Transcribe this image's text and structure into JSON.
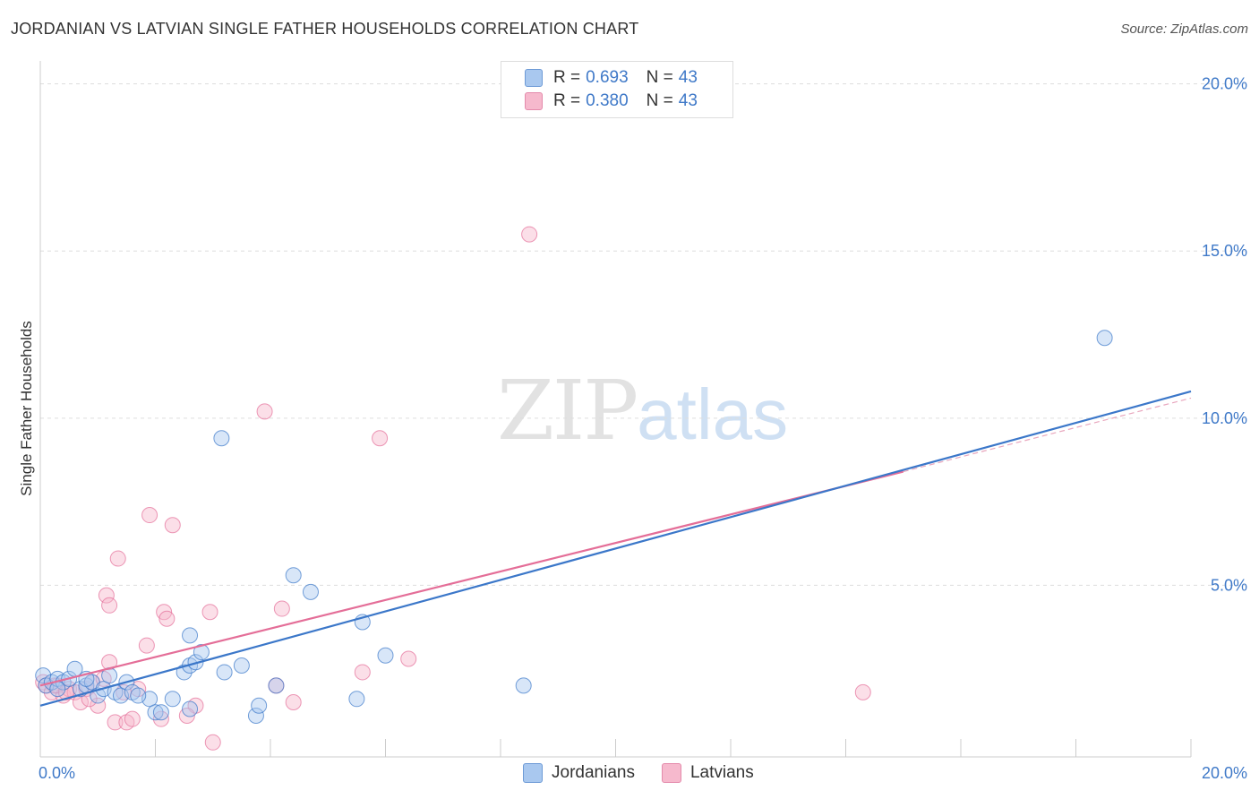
{
  "title": "JORDANIAN VS LATVIAN SINGLE FATHER HOUSEHOLDS CORRELATION CHART",
  "source": "Source: ZipAtlas.com",
  "watermark": {
    "zip": "ZIP",
    "atlas": "atlas"
  },
  "legend": {
    "r_label": "R =",
    "n_label": "N =",
    "series": [
      {
        "name": "Jordanians",
        "r": "0.693",
        "n": "43"
      },
      {
        "name": "Latvians",
        "r": "0.380",
        "n": "43"
      }
    ]
  },
  "chart_data": {
    "type": "scatter",
    "title": "JORDANIAN VS LATVIAN SINGLE FATHER HOUSEHOLDS CORRELATION CHART",
    "xlabel": "",
    "ylabel": "Single Father Households",
    "xlim": [
      0,
      20
    ],
    "ylim": [
      0,
      20.5
    ],
    "x_tick_labels": [
      "0.0%",
      "20.0%"
    ],
    "y_ticks": [
      5,
      10,
      15,
      20
    ],
    "y_tick_labels": [
      "5.0%",
      "10.0%",
      "15.0%",
      "20.0%"
    ],
    "grid": true,
    "colors": {
      "Jordanians": "#3b77c9",
      "Latvians": "#e46e98",
      "Jordanians_fill": "#a9c8ef",
      "Latvians_fill": "#f6b9cd"
    },
    "series": [
      {
        "name": "Jordanians",
        "r": 0.693,
        "n": 43,
        "trend": {
          "x": [
            0,
            20
          ],
          "y": [
            1.4,
            10.8
          ]
        },
        "points": [
          [
            0.05,
            2.3
          ],
          [
            0.1,
            2.0
          ],
          [
            0.2,
            2.1
          ],
          [
            0.3,
            2.2
          ],
          [
            0.4,
            2.1
          ],
          [
            0.5,
            2.2
          ],
          [
            0.6,
            2.5
          ],
          [
            0.7,
            1.9
          ],
          [
            0.8,
            2.0
          ],
          [
            0.9,
            2.1
          ],
          [
            1.0,
            1.7
          ],
          [
            1.1,
            1.9
          ],
          [
            1.3,
            1.8
          ],
          [
            1.4,
            1.7
          ],
          [
            1.5,
            2.1
          ],
          [
            1.6,
            1.8
          ],
          [
            1.2,
            2.3
          ],
          [
            1.9,
            1.6
          ],
          [
            2.0,
            1.2
          ],
          [
            2.1,
            1.2
          ],
          [
            2.3,
            1.6
          ],
          [
            2.5,
            2.4
          ],
          [
            2.6,
            2.6
          ],
          [
            2.6,
            1.3
          ],
          [
            2.7,
            2.7
          ],
          [
            2.6,
            3.5
          ],
          [
            2.8,
            3.0
          ],
          [
            3.2,
            2.4
          ],
          [
            3.5,
            2.6
          ],
          [
            3.75,
            1.1
          ],
          [
            3.8,
            1.4
          ],
          [
            4.1,
            2.0
          ],
          [
            4.4,
            5.3
          ],
          [
            4.7,
            4.8
          ],
          [
            5.5,
            1.6
          ],
          [
            5.6,
            3.9
          ],
          [
            6.0,
            2.9
          ],
          [
            3.15,
            9.4
          ],
          [
            8.4,
            2.0
          ],
          [
            18.5,
            12.4
          ],
          [
            0.3,
            1.9
          ],
          [
            0.8,
            2.2
          ],
          [
            1.7,
            1.7
          ]
        ]
      },
      {
        "name": "Latvians",
        "r": 0.38,
        "n": 43,
        "trend": {
          "x": [
            0,
            15
          ],
          "y": [
            2.0,
            8.4
          ]
        },
        "trend_extension": {
          "x": [
            15,
            20
          ],
          "y": [
            8.4,
            10.6
          ]
        },
        "points": [
          [
            0.05,
            2.1
          ],
          [
            0.1,
            2.0
          ],
          [
            0.2,
            1.8
          ],
          [
            0.3,
            2.0
          ],
          [
            0.4,
            1.7
          ],
          [
            0.5,
            1.9
          ],
          [
            0.6,
            1.8
          ],
          [
            0.7,
            1.5
          ],
          [
            0.8,
            1.9
          ],
          [
            0.9,
            2.1
          ],
          [
            1.0,
            1.4
          ],
          [
            1.1,
            2.2
          ],
          [
            1.2,
            2.7
          ],
          [
            1.3,
            0.9
          ],
          [
            1.5,
            0.9
          ],
          [
            1.6,
            1.0
          ],
          [
            1.7,
            1.9
          ],
          [
            1.35,
            5.8
          ],
          [
            1.15,
            4.7
          ],
          [
            1.2,
            4.4
          ],
          [
            1.85,
            3.2
          ],
          [
            1.9,
            7.1
          ],
          [
            2.1,
            1.0
          ],
          [
            2.15,
            4.2
          ],
          [
            2.2,
            4.0
          ],
          [
            2.3,
            6.8
          ],
          [
            2.7,
            1.4
          ],
          [
            2.95,
            4.2
          ],
          [
            3.0,
            0.3
          ],
          [
            3.9,
            10.2
          ],
          [
            4.1,
            2.0
          ],
          [
            4.2,
            4.3
          ],
          [
            4.4,
            1.5
          ],
          [
            5.6,
            2.4
          ],
          [
            5.9,
            9.4
          ],
          [
            6.4,
            2.8
          ],
          [
            8.5,
            15.5
          ],
          [
            14.3,
            1.8
          ],
          [
            0.25,
            2.0
          ],
          [
            0.45,
            1.8
          ],
          [
            0.85,
            1.6
          ],
          [
            1.45,
            1.8
          ],
          [
            2.55,
            1.1
          ]
        ]
      }
    ]
  }
}
